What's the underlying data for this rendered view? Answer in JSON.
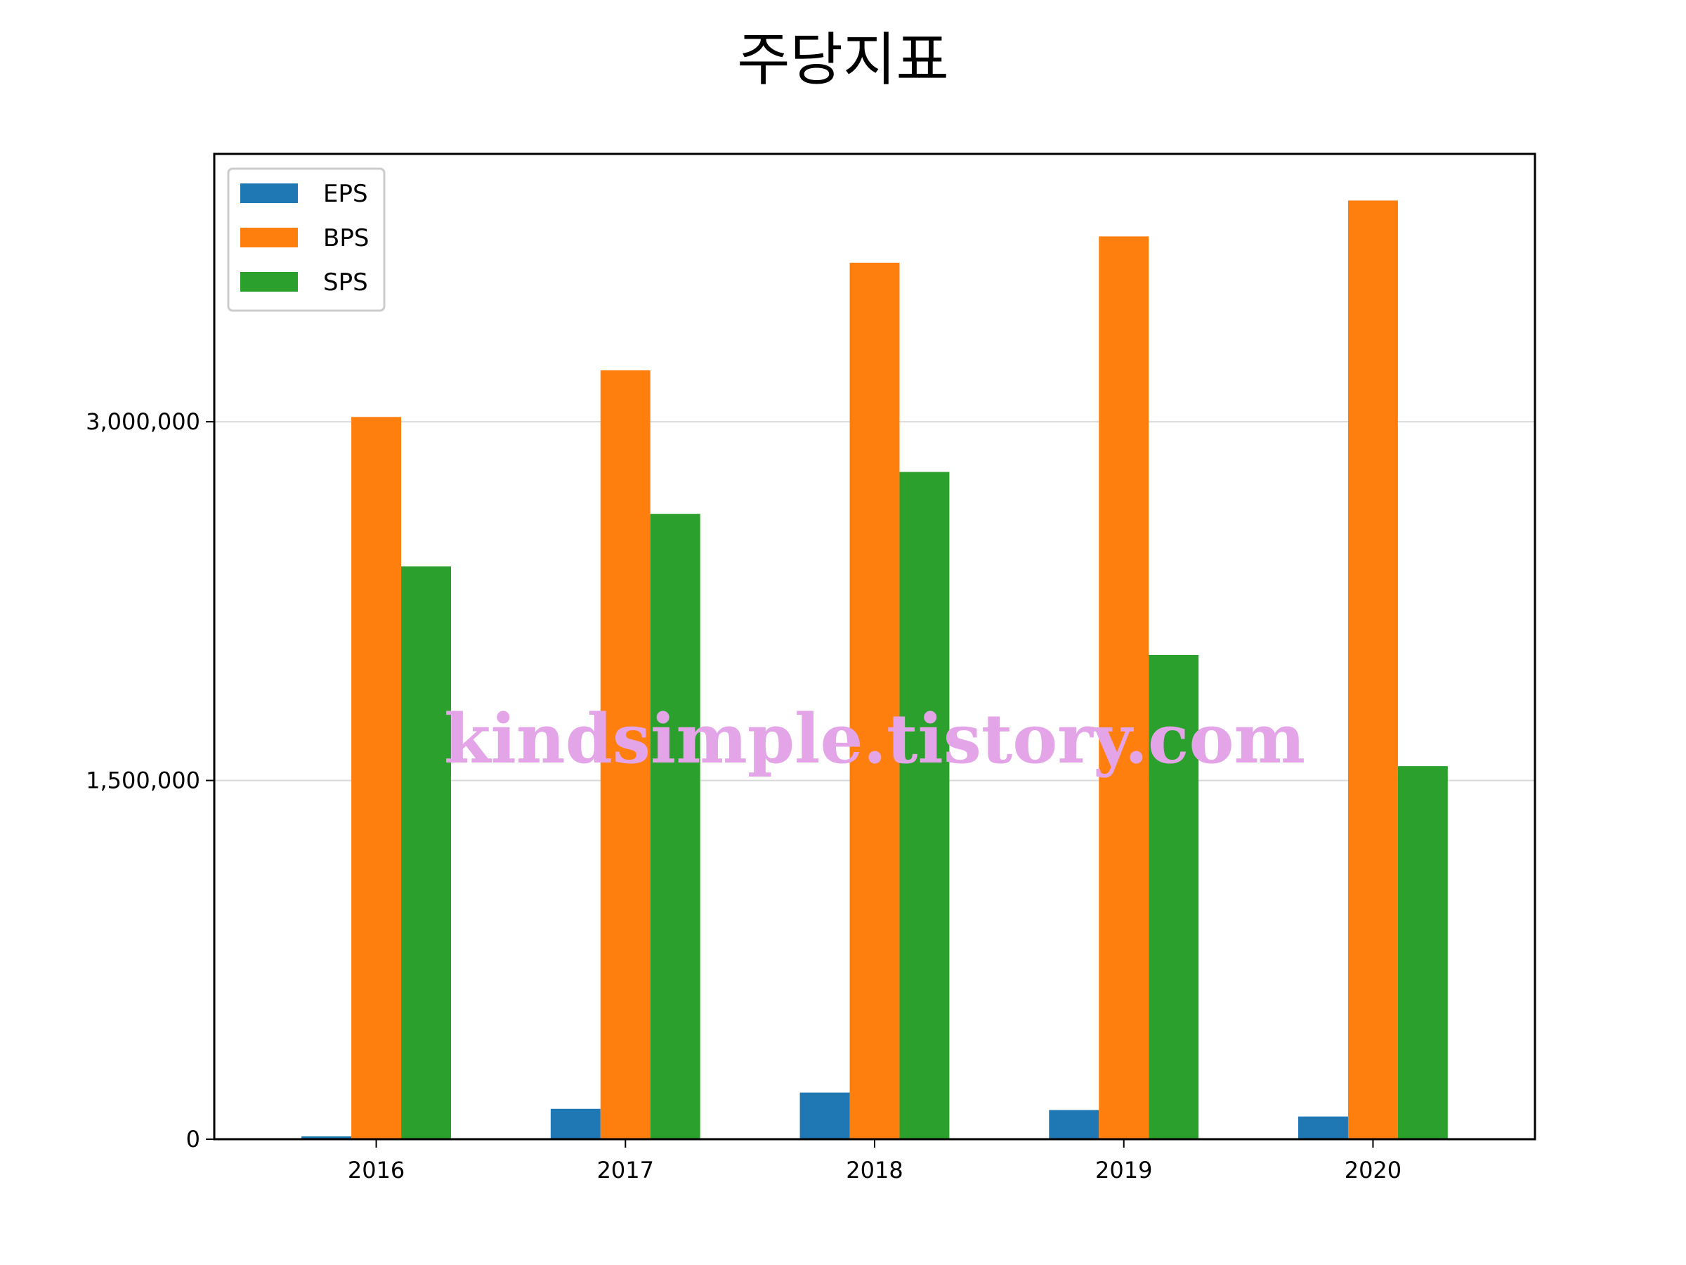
{
  "chart_data": {
    "type": "bar",
    "title": "주당지표",
    "xlabel": "",
    "ylabel": "",
    "categories": [
      "2016",
      "2017",
      "2018",
      "2019",
      "2020"
    ],
    "series": [
      {
        "name": "EPS",
        "color": "#1f77b4",
        "values": [
          12000,
          127000,
          195000,
          122000,
          95000
        ]
      },
      {
        "name": "BPS",
        "color": "#ff7f0e",
        "values": [
          3020000,
          3215000,
          3665000,
          3775000,
          3925000
        ]
      },
      {
        "name": "SPS",
        "color": "#2ca02c",
        "values": [
          2395000,
          2615000,
          2790000,
          2025000,
          1560000
        ]
      }
    ],
    "ylim": [
      0,
      4120000
    ],
    "yticks": [
      {
        "value": 0,
        "label": "0"
      },
      {
        "value": 1500000,
        "label": "1,500,000"
      },
      {
        "value": 3000000,
        "label": "3,000,000"
      }
    ],
    "grid": "y",
    "legend_position": "top-left",
    "watermark": {
      "text": "kindsimple.tistory.com",
      "color": "#e3a5e8"
    }
  }
}
